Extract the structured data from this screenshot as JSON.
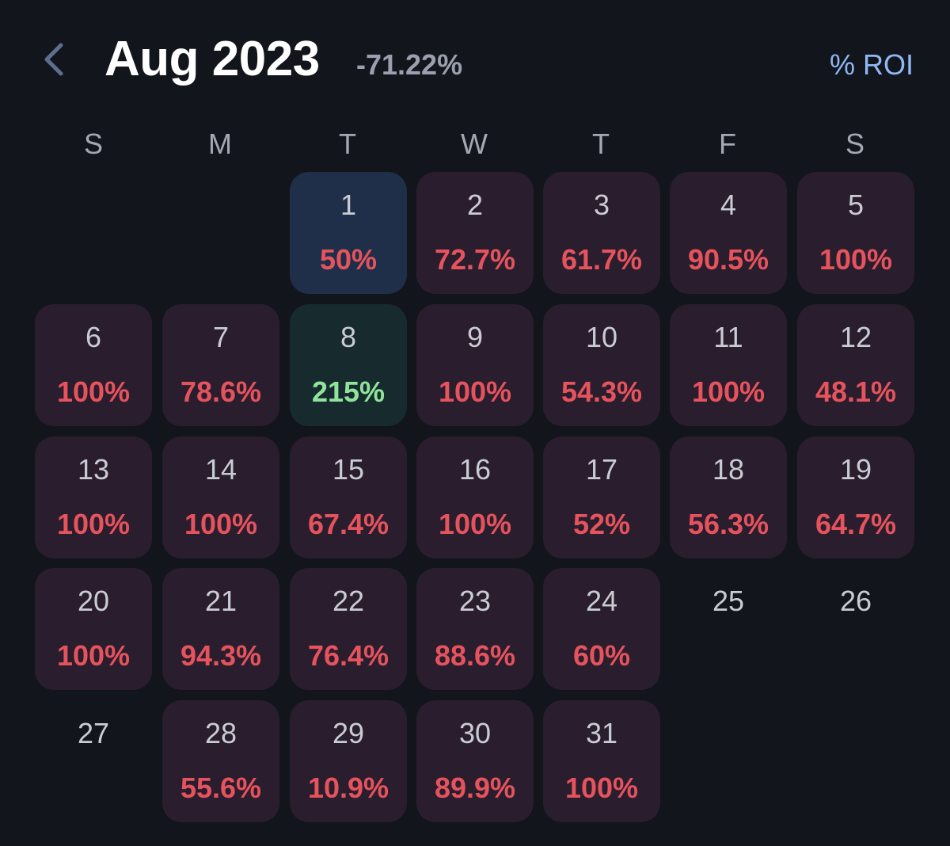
{
  "header": {
    "back_icon": "chevron-left-icon",
    "month_label": "Aug 2023",
    "month_change": "-71.22%",
    "metric_toggle": "% ROI"
  },
  "weekdays": [
    "S",
    "M",
    "T",
    "W",
    "T",
    "F",
    "S"
  ],
  "colors": {
    "background": "#12151b",
    "loss_cell": "#2a1d2e",
    "gain_cell": "#172a2e",
    "even_cell": "#1f2f4a",
    "loss_text": "#e5535d",
    "gain_text": "#8fe39a",
    "accent": "#8fb8f5"
  },
  "days": [
    {
      "day": "1",
      "value": "50%",
      "status": "even"
    },
    {
      "day": "2",
      "value": "72.7%",
      "status": "loss"
    },
    {
      "day": "3",
      "value": "61.7%",
      "status": "loss"
    },
    {
      "day": "4",
      "value": "90.5%",
      "status": "loss"
    },
    {
      "day": "5",
      "value": "100%",
      "status": "loss"
    },
    {
      "day": "6",
      "value": "100%",
      "status": "loss"
    },
    {
      "day": "7",
      "value": "78.6%",
      "status": "loss"
    },
    {
      "day": "8",
      "value": "215%",
      "status": "gain"
    },
    {
      "day": "9",
      "value": "100%",
      "status": "loss"
    },
    {
      "day": "10",
      "value": "54.3%",
      "status": "loss"
    },
    {
      "day": "11",
      "value": "100%",
      "status": "loss"
    },
    {
      "day": "12",
      "value": "48.1%",
      "status": "loss"
    },
    {
      "day": "13",
      "value": "100%",
      "status": "loss"
    },
    {
      "day": "14",
      "value": "100%",
      "status": "loss"
    },
    {
      "day": "15",
      "value": "67.4%",
      "status": "loss"
    },
    {
      "day": "16",
      "value": "100%",
      "status": "loss"
    },
    {
      "day": "17",
      "value": "52%",
      "status": "loss"
    },
    {
      "day": "18",
      "value": "56.3%",
      "status": "loss"
    },
    {
      "day": "19",
      "value": "64.7%",
      "status": "loss"
    },
    {
      "day": "20",
      "value": "100%",
      "status": "loss"
    },
    {
      "day": "21",
      "value": "94.3%",
      "status": "loss"
    },
    {
      "day": "22",
      "value": "76.4%",
      "status": "loss"
    },
    {
      "day": "23",
      "value": "88.6%",
      "status": "loss"
    },
    {
      "day": "24",
      "value": "60%",
      "status": "loss"
    },
    {
      "day": "25",
      "value": "",
      "status": "empty"
    },
    {
      "day": "26",
      "value": "",
      "status": "empty"
    },
    {
      "day": "27",
      "value": "",
      "status": "empty"
    },
    {
      "day": "28",
      "value": "55.6%",
      "status": "loss"
    },
    {
      "day": "29",
      "value": "10.9%",
      "status": "loss"
    },
    {
      "day": "30",
      "value": "89.9%",
      "status": "loss"
    },
    {
      "day": "31",
      "value": "100%",
      "status": "loss"
    }
  ]
}
